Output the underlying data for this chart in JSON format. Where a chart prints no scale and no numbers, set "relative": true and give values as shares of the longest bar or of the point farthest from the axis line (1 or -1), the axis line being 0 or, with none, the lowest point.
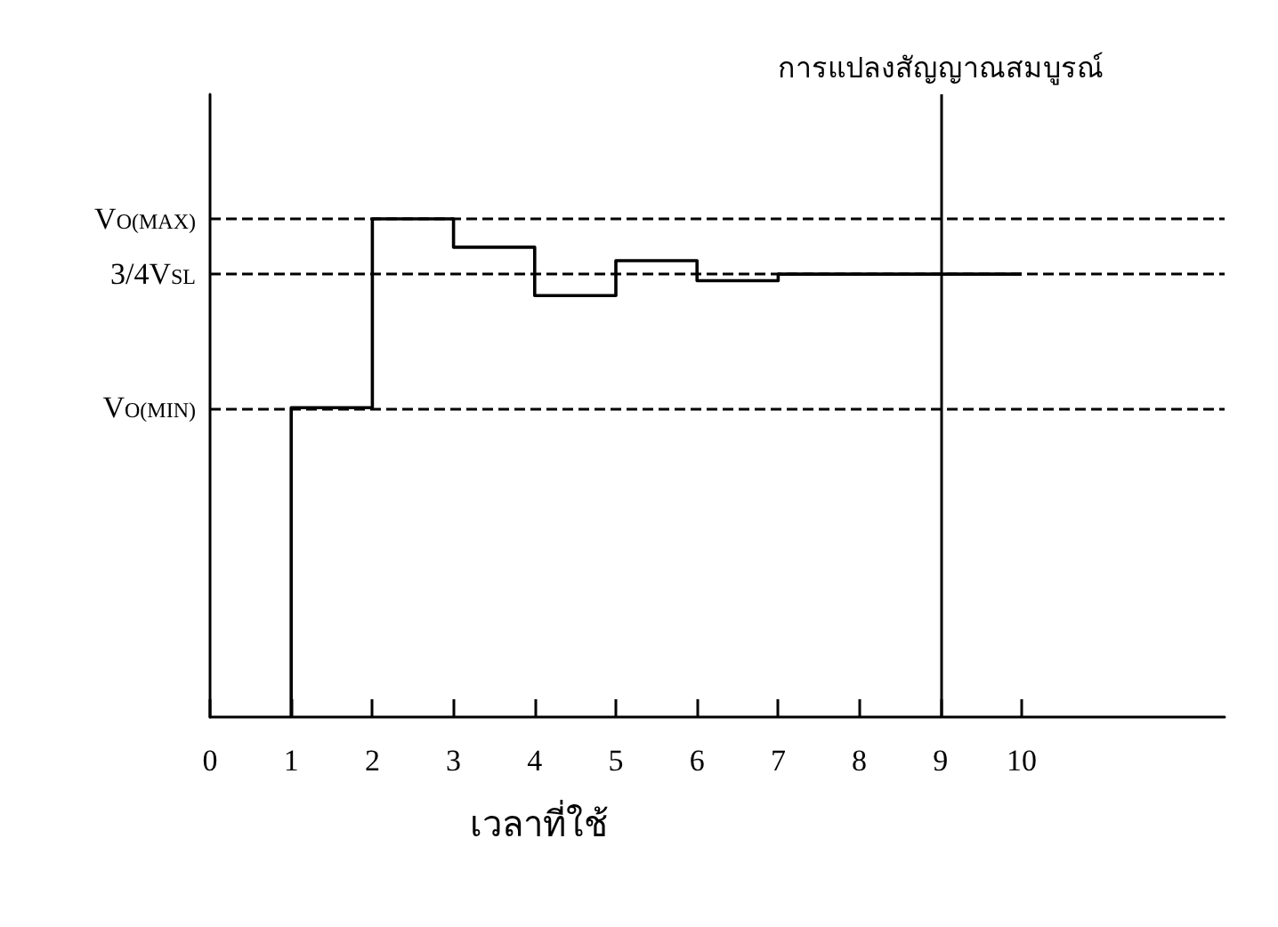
{
  "chart_data": {
    "type": "step",
    "relative": true,
    "xlabel": "เวลาที่ใช้",
    "x": [
      1,
      2,
      3,
      4,
      5,
      6,
      7,
      10
    ],
    "series": [
      {
        "color": "#000000",
        "values": [
          0,
          0.621,
          1,
          0.943,
          0.846,
          0.916,
          0.876,
          0.889
        ]
      }
    ],
    "xlim": [
      0,
      12.5
    ],
    "xticks": [
      0,
      1,
      2,
      3,
      4,
      5,
      6,
      7,
      8,
      9,
      10
    ],
    "ref_lines": [
      {
        "axis": "y",
        "value": 1,
        "label": "V$_{O(MAX)}$",
        "line_style": "dashed",
        "color": "#000000"
      },
      {
        "axis": "y",
        "value": 0.889,
        "label": "3/4V$_{SL}$",
        "line_style": "dashed",
        "color": "#000000"
      },
      {
        "axis": "y",
        "value": 0.621,
        "label": "V$_{O(MIN)}$",
        "line_style": "dashed",
        "color": "#000000"
      },
      {
        "axis": "x",
        "value": 9,
        "label": "การแปลงสัญญาณสมบูรณ์",
        "line_style": "solid",
        "color": "#000000"
      }
    ],
    "grid": false
  }
}
